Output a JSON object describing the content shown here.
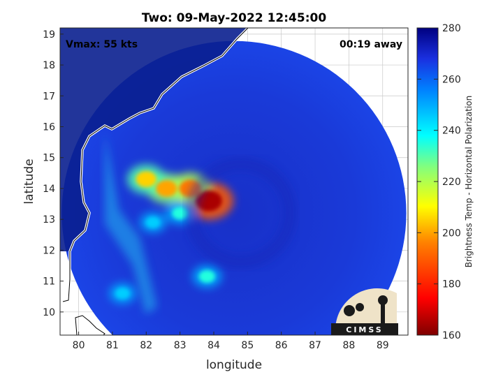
{
  "chart_data": {
    "type": "heatmap",
    "title": "Two: 09-May-2022 12:45:00",
    "xlabel": "longitude",
    "ylabel": "latitude",
    "xlim": [
      79.45,
      89.75
    ],
    "ylim": [
      9.25,
      19.2
    ],
    "xticks": [
      "80",
      "81",
      "82",
      "83",
      "84",
      "85",
      "86",
      "87",
      "88",
      "89"
    ],
    "yticks": [
      "10",
      "11",
      "12",
      "13",
      "14",
      "15",
      "16",
      "17",
      "18",
      "19"
    ],
    "grid": true,
    "colorbar": {
      "label": "Brightness Temp - Horizontal Polarization",
      "range": [
        160,
        280
      ],
      "ticks": [
        "160",
        "180",
        "200",
        "220",
        "240",
        "260",
        "280"
      ]
    },
    "annotations": {
      "vmax": "Vmax: 55 kts",
      "time_away": "00:19 away"
    },
    "swath": {
      "center_lon": 84.6,
      "center_lat": 13.2,
      "radius_deg": 5.1
    },
    "features": [
      {
        "lon": 83.85,
        "lat": 13.6,
        "temp": 165
      },
      {
        "lon": 82.6,
        "lat": 14.0,
        "temp": 200
      },
      {
        "lon": 82.0,
        "lat": 14.3,
        "temp": 205
      },
      {
        "lon": 83.3,
        "lat": 14.0,
        "temp": 195
      },
      {
        "lon": 83.0,
        "lat": 13.2,
        "temp": 235
      },
      {
        "lon": 82.2,
        "lat": 12.9,
        "temp": 245
      },
      {
        "lon": 83.8,
        "lat": 11.15,
        "temp": 235
      },
      {
        "lon": 81.3,
        "lat": 10.6,
        "temp": 245
      }
    ],
    "logo": "CIMSS"
  }
}
